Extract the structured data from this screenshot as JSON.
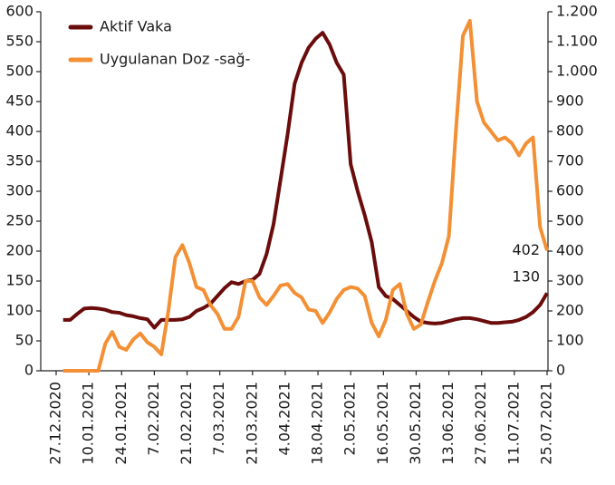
{
  "chart_data": {
    "type": "line",
    "x": [
      "30.12.2020",
      "02.01.2021",
      "05.01.2021",
      "08.01.2021",
      "11.01.2021",
      "14.01.2021",
      "17.01.2021",
      "20.01.2021",
      "23.01.2021",
      "26.01.2021",
      "29.01.2021",
      "01.02.2021",
      "04.02.2021",
      "07.02.2021",
      "10.02.2021",
      "13.02.2021",
      "16.02.2021",
      "19.02.2021",
      "22.02.2021",
      "25.02.2021",
      "28.02.2021",
      "03.03.2021",
      "06.03.2021",
      "09.03.2021",
      "12.03.2021",
      "15.03.2021",
      "18.03.2021",
      "21.03.2021",
      "24.03.2021",
      "27.03.2021",
      "30.03.2021",
      "02.04.2021",
      "05.04.2021",
      "08.04.2021",
      "11.04.2021",
      "14.04.2021",
      "17.04.2021",
      "20.04.2021",
      "23.04.2021",
      "26.04.2021",
      "29.04.2021",
      "02.05.2021",
      "05.05.2021",
      "08.05.2021",
      "11.05.2021",
      "14.05.2021",
      "17.05.2021",
      "20.05.2021",
      "23.05.2021",
      "26.05.2021",
      "29.05.2021",
      "01.06.2021",
      "04.06.2021",
      "07.06.2021",
      "10.06.2021",
      "13.06.2021",
      "16.06.2021",
      "19.06.2021",
      "22.06.2021",
      "25.06.2021",
      "28.06.2021",
      "01.07.2021",
      "04.07.2021",
      "07.07.2021",
      "10.07.2021",
      "13.07.2021",
      "16.07.2021",
      "19.07.2021",
      "22.07.2021",
      "25.07.2021"
    ],
    "series": [
      {
        "name": "Aktif Vaka",
        "color": "#6b0c0c",
        "axis": "y",
        "values": [
          85,
          85,
          95,
          104,
          105,
          104,
          102,
          98,
          97,
          93,
          91,
          88,
          86,
          72,
          85,
          85,
          85,
          86,
          90,
          100,
          105,
          112,
          125,
          138,
          148,
          145,
          150,
          152,
          162,
          195,
          245,
          320,
          395,
          480,
          515,
          540,
          555,
          565,
          545,
          515,
          495,
          345,
          300,
          260,
          215,
          140,
          125,
          120,
          110,
          100,
          90,
          82,
          80,
          79,
          80,
          83,
          86,
          88,
          88,
          86,
          83,
          80,
          80,
          81,
          82,
          85,
          90,
          98,
          110,
          130
        ]
      },
      {
        "name": "Uygulanan Doz -sağ-",
        "color": "#f39035",
        "axis": "y2",
        "values": [
          0,
          0,
          0,
          0,
          0,
          0,
          90,
          130,
          80,
          70,
          105,
          125,
          95,
          80,
          55,
          200,
          380,
          420,
          360,
          280,
          270,
          220,
          190,
          140,
          140,
          180,
          300,
          300,
          245,
          220,
          250,
          285,
          290,
          260,
          245,
          205,
          200,
          160,
          195,
          240,
          270,
          280,
          275,
          250,
          160,
          115,
          170,
          270,
          290,
          190,
          140,
          155,
          230,
          300,
          360,
          450,
          800,
          1120,
          1170,
          900,
          830,
          800,
          770,
          780,
          760,
          720,
          760,
          780,
          480,
          402
        ]
      }
    ],
    "xlim": [
      "27.12.2020",
      "25.07.2021"
    ],
    "xticks": [
      "27.12.2020",
      "10.01.2021",
      "24.01.2021",
      "7.02.2021",
      "21.02.2021",
      "7.03.2021",
      "21.03.2021",
      "4.04.2021",
      "18.04.2021",
      "2.05.2021",
      "16.05.2021",
      "30.05.2021",
      "13.06.2021",
      "27.06.2021",
      "11.07.2021",
      "25.07.2021"
    ],
    "ylim": [
      0,
      600
    ],
    "yticks": [
      0,
      50,
      100,
      150,
      200,
      250,
      300,
      350,
      400,
      450,
      500,
      550,
      600
    ],
    "y2lim": [
      0,
      1200
    ],
    "y2ticks": [
      0,
      100,
      200,
      300,
      400,
      500,
      600,
      700,
      800,
      900,
      {
        "value": 1000,
        "label": "1.000"
      },
      {
        "value": 1100,
        "label": "1.100"
      },
      {
        "value": 1200,
        "label": "1.200"
      }
    ],
    "grid": false,
    "legend": "upper-left"
  }
}
